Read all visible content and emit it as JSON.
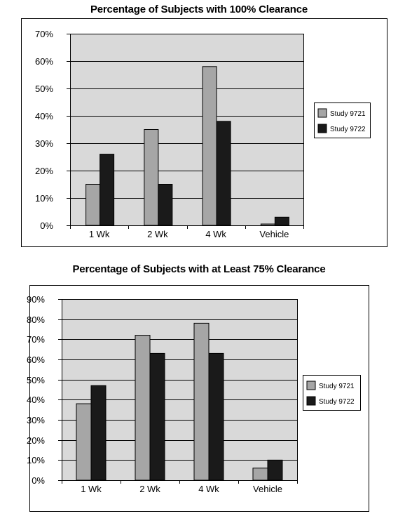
{
  "colors": {
    "study_9721": "#a6a6a6",
    "study_9722": "#1a1a1a",
    "plot_bg": "#d9d9d9"
  },
  "chart_data": [
    {
      "type": "bar",
      "title": "Percentage of Subjects with 100% Clearance",
      "categories": [
        "1 Wk",
        "2 Wk",
        "4 Wk",
        "Vehicle"
      ],
      "series": [
        {
          "name": "Study 9721",
          "values": [
            15,
            35,
            58,
            0.5
          ]
        },
        {
          "name": "Study 9722",
          "values": [
            26,
            15,
            38,
            3
          ]
        }
      ],
      "ylim": [
        0,
        70
      ],
      "yticks": [
        "0%",
        "10%",
        "20%",
        "30%",
        "40%",
        "50%",
        "60%",
        "70%"
      ],
      "grid": true,
      "legend": "right"
    },
    {
      "type": "bar",
      "title": "Percentage of Subjects with at Least 75% Clearance",
      "categories": [
        "1 Wk",
        "2 Wk",
        "4 Wk",
        "Vehicle"
      ],
      "series": [
        {
          "name": "Study 9721",
          "values": [
            38,
            72,
            78,
            6
          ]
        },
        {
          "name": "Study 9722",
          "values": [
            47,
            63,
            63,
            10
          ]
        }
      ],
      "ylim": [
        0,
        90
      ],
      "yticks": [
        "0%",
        "10%",
        "20%",
        "30%",
        "40%",
        "50%",
        "60%",
        "70%",
        "80%",
        "90%"
      ],
      "grid": true,
      "legend": "right"
    }
  ]
}
